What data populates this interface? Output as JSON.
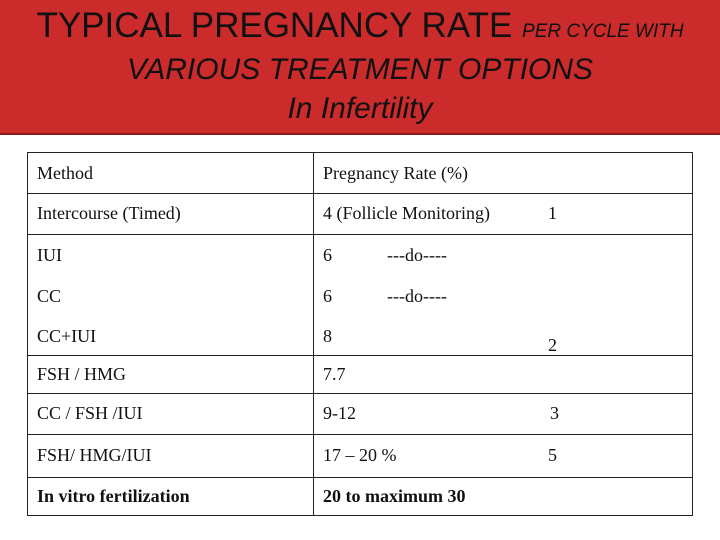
{
  "title": {
    "line1_main": "TYPICAL PREGNANCY RATE",
    "line1_small": "PER CYCLE WITH",
    "line2": "VARIOUS TREATMENT OPTIONS",
    "line3": "In Infertility"
  },
  "colors": {
    "banner": "#cc2b2b",
    "text": "#111111"
  },
  "table": {
    "headers": {
      "method": "Method",
      "rate": "Pregnancy Rate (%)"
    },
    "rows": [
      {
        "method": "Intercourse (Timed)",
        "rate": "4 (Follicle Monitoring)",
        "note": "",
        "extra": "1"
      },
      {
        "method": "IUI",
        "rate": "6",
        "note": "---do----",
        "extra": ""
      },
      {
        "method": "CC",
        "rate": "6",
        "note": "---do----",
        "extra": ""
      },
      {
        "method": "CC+IUI",
        "rate": "8",
        "note": "",
        "extra": "2"
      },
      {
        "method": "FSH / HMG",
        "rate": "7.7",
        "note": "",
        "extra": ""
      },
      {
        "method": "CC / FSH /IUI",
        "rate": "9-12",
        "note": "",
        "extra": "3"
      },
      {
        "method": "FSH/ HMG/IUI",
        "rate": "17 – 20 %",
        "note": "",
        "extra": "5"
      },
      {
        "method": "In vitro fertilization",
        "rate": "20 to maximum 30",
        "note": "",
        "extra": ""
      }
    ]
  }
}
